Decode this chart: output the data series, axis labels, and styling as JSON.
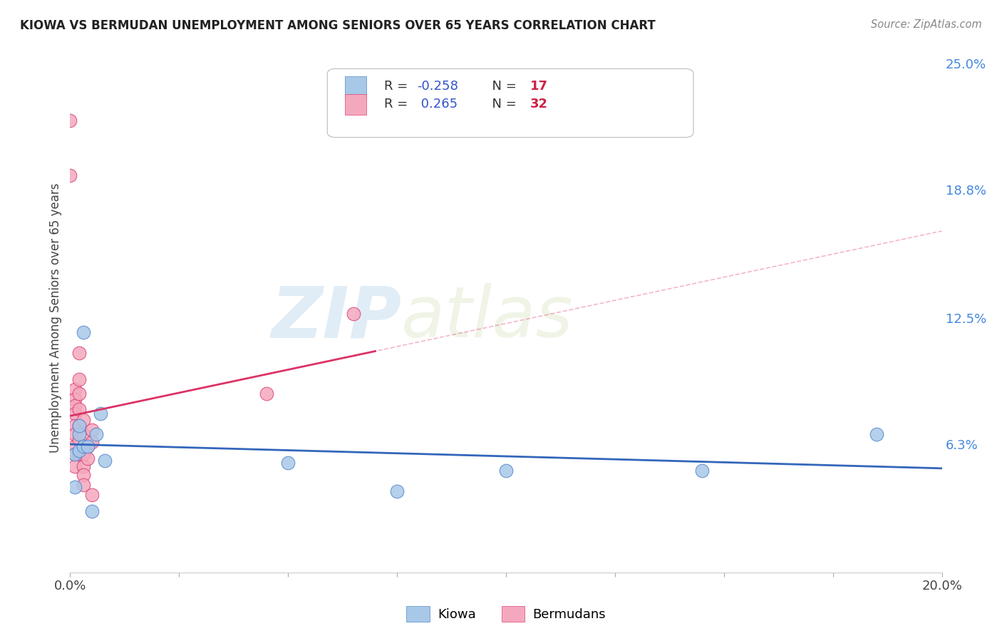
{
  "title": "KIOWA VS BERMUDAN UNEMPLOYMENT AMONG SENIORS OVER 65 YEARS CORRELATION CHART",
  "source": "Source: ZipAtlas.com",
  "ylabel": "Unemployment Among Seniors over 65 years",
  "xlim": [
    0.0,
    0.2
  ],
  "ylim": [
    0.0,
    0.25
  ],
  "xtick_positions": [
    0.0,
    0.025,
    0.05,
    0.075,
    0.1,
    0.125,
    0.15,
    0.175,
    0.2
  ],
  "yticks_right": [
    0.0,
    0.063,
    0.125,
    0.188,
    0.25
  ],
  "ytick_right_labels": [
    "",
    "6.3%",
    "12.5%",
    "18.8%",
    "25.0%"
  ],
  "kiowa_color": "#a8c8e8",
  "bermuda_color": "#f4a8be",
  "kiowa_edge": "#5588cc",
  "bermuda_edge": "#dd4477",
  "trend_kiowa_color": "#3366bb",
  "trend_bermuda_color": "#dd3366",
  "watermark_zip": "ZIP",
  "watermark_atlas": "atlas",
  "kiowa_x": [
    0.001,
    0.001,
    0.002,
    0.002,
    0.002,
    0.003,
    0.003,
    0.004,
    0.005,
    0.006,
    0.007,
    0.008,
    0.05,
    0.075,
    0.1,
    0.145,
    0.185
  ],
  "kiowa_y": [
    0.058,
    0.042,
    0.06,
    0.068,
    0.072,
    0.062,
    0.118,
    0.062,
    0.03,
    0.068,
    0.078,
    0.055,
    0.054,
    0.04,
    0.05,
    0.05,
    0.068
  ],
  "bermuda_x": [
    0.0,
    0.0,
    0.001,
    0.001,
    0.001,
    0.001,
    0.001,
    0.001,
    0.001,
    0.001,
    0.001,
    0.002,
    0.002,
    0.002,
    0.002,
    0.002,
    0.002,
    0.002,
    0.003,
    0.003,
    0.003,
    0.003,
    0.003,
    0.003,
    0.003,
    0.004,
    0.004,
    0.005,
    0.005,
    0.005,
    0.045,
    0.065
  ],
  "bermuda_y": [
    0.222,
    0.195,
    0.09,
    0.085,
    0.082,
    0.078,
    0.072,
    0.068,
    0.062,
    0.058,
    0.052,
    0.108,
    0.095,
    0.088,
    0.08,
    0.072,
    0.065,
    0.058,
    0.075,
    0.068,
    0.062,
    0.058,
    0.052,
    0.048,
    0.043,
    0.062,
    0.056,
    0.07,
    0.064,
    0.038,
    0.088,
    0.127
  ]
}
